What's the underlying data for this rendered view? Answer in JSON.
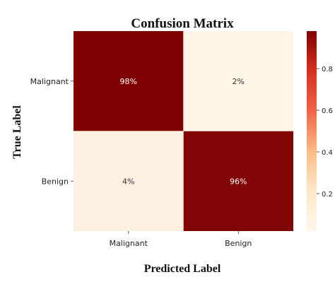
{
  "chart_data": {
    "type": "heatmap",
    "title": "Confusion Matrix",
    "xlabel": "Predicted Label",
    "ylabel": "True Label",
    "x_categories": [
      "Malignant",
      "Benign"
    ],
    "y_categories": [
      "Malignant",
      "Benign"
    ],
    "values": [
      [
        0.98,
        0.02
      ],
      [
        0.04,
        0.96
      ]
    ],
    "cell_labels": [
      [
        "98%",
        "2%"
      ],
      [
        "4%",
        "96%"
      ]
    ],
    "colorbar": {
      "range": [
        0.02,
        0.98
      ],
      "ticks": [
        0.2,
        0.4,
        0.6,
        0.8
      ],
      "tick_labels": [
        "0.2",
        "0.4",
        "0.6",
        "0.8"
      ]
    },
    "colormap": "OrRd",
    "colors": {
      "low": "#fff5e6",
      "high": "#7f0000"
    },
    "grid": false
  }
}
